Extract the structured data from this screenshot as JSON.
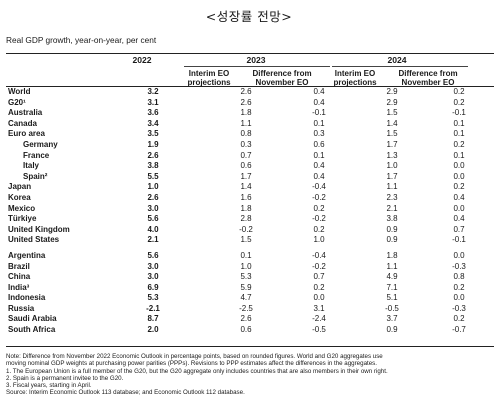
{
  "title": "<성장률 전망>",
  "subtitle": "Real GDP growth, year-on-year, per cent",
  "headers": {
    "y2022": "2022",
    "y2023": "2023",
    "y2024": "2024",
    "interim_1": "Interim EO",
    "interim_2": "projections",
    "diff_1": "Difference from",
    "diff_2": "November EO"
  },
  "rows_a": [
    {
      "name": "World",
      "v2022": "3.2",
      "i2023": "2.6",
      "d2023": "0.4",
      "i2024": "2.9",
      "d2024": "0.2",
      "indent": false
    },
    {
      "name": "G20¹",
      "v2022": "3.1",
      "i2023": "2.6",
      "d2023": "0.4",
      "i2024": "2.9",
      "d2024": "0.2",
      "indent": false
    },
    {
      "name": "Australia",
      "v2022": "3.6",
      "i2023": "1.8",
      "d2023": "-0.1",
      "i2024": "1.5",
      "d2024": "-0.1",
      "indent": false
    },
    {
      "name": "Canada",
      "v2022": "3.4",
      "i2023": "1.1",
      "d2023": "0.1",
      "i2024": "1.4",
      "d2024": "0.1",
      "indent": false
    },
    {
      "name": "Euro area",
      "v2022": "3.5",
      "i2023": "0.8",
      "d2023": "0.3",
      "i2024": "1.5",
      "d2024": "0.1",
      "indent": false
    },
    {
      "name": "Germany",
      "v2022": "1.9",
      "i2023": "0.3",
      "d2023": "0.6",
      "i2024": "1.7",
      "d2024": "0.2",
      "indent": true
    },
    {
      "name": "France",
      "v2022": "2.6",
      "i2023": "0.7",
      "d2023": "0.1",
      "i2024": "1.3",
      "d2024": "0.1",
      "indent": true
    },
    {
      "name": "Italy",
      "v2022": "3.8",
      "i2023": "0.6",
      "d2023": "0.4",
      "i2024": "1.0",
      "d2024": "0.0",
      "indent": true
    },
    {
      "name": "Spain²",
      "v2022": "5.5",
      "i2023": "1.7",
      "d2023": "0.4",
      "i2024": "1.7",
      "d2024": "0.0",
      "indent": true
    },
    {
      "name": "Japan",
      "v2022": "1.0",
      "i2023": "1.4",
      "d2023": "-0.4",
      "i2024": "1.1",
      "d2024": "0.2",
      "indent": false
    },
    {
      "name": "Korea",
      "v2022": "2.6",
      "i2023": "1.6",
      "d2023": "-0.2",
      "i2024": "2.3",
      "d2024": "0.4",
      "indent": false
    },
    {
      "name": "Mexico",
      "v2022": "3.0",
      "i2023": "1.8",
      "d2023": "0.2",
      "i2024": "2.1",
      "d2024": "0.0",
      "indent": false
    },
    {
      "name": "Türkiye",
      "v2022": "5.6",
      "i2023": "2.8",
      "d2023": "-0.2",
      "i2024": "3.8",
      "d2024": "0.4",
      "indent": false
    },
    {
      "name": "United Kingdom",
      "v2022": "4.0",
      "i2023": "-0.2",
      "d2023": "0.2",
      "i2024": "0.9",
      "d2024": "0.7",
      "indent": false
    },
    {
      "name": "United States",
      "v2022": "2.1",
      "i2023": "1.5",
      "d2023": "1.0",
      "i2024": "0.9",
      "d2024": "-0.1",
      "indent": false
    }
  ],
  "rows_b": [
    {
      "name": "Argentina",
      "v2022": "5.6",
      "i2023": "0.1",
      "d2023": "-0.4",
      "i2024": "1.8",
      "d2024": "0.0",
      "indent": false
    },
    {
      "name": "Brazil",
      "v2022": "3.0",
      "i2023": "1.0",
      "d2023": "-0.2",
      "i2024": "1.1",
      "d2024": "-0.3",
      "indent": false
    },
    {
      "name": "China",
      "v2022": "3.0",
      "i2023": "5.3",
      "d2023": "0.7",
      "i2024": "4.9",
      "d2024": "0.8",
      "indent": false
    },
    {
      "name": "India³",
      "v2022": "6.9",
      "i2023": "5.9",
      "d2023": "0.2",
      "i2024": "7.1",
      "d2024": "0.2",
      "indent": false
    },
    {
      "name": "Indonesia",
      "v2022": "5.3",
      "i2023": "4.7",
      "d2023": "0.0",
      "i2024": "5.1",
      "d2024": "0.0",
      "indent": false
    },
    {
      "name": "Russia",
      "v2022": "-2.1",
      "i2023": "-2.5",
      "d2023": "3.1",
      "i2024": "-0.5",
      "d2024": "-0.3",
      "indent": false
    },
    {
      "name": "Saudi Arabia",
      "v2022": "8.7",
      "i2023": "2.6",
      "d2023": "-2.4",
      "i2024": "3.7",
      "d2024": "0.2",
      "indent": false
    },
    {
      "name": "South Africa",
      "v2022": "2.0",
      "i2023": "0.6",
      "d2023": "-0.5",
      "i2024": "0.9",
      "d2024": "-0.7",
      "indent": false
    }
  ],
  "notes": [
    "Note: Difference from November 2022 Economic Outlook in percentage points, based on rounded figures. World and G20 aggregates use",
    "moving nominal GDP weights at purchasing power parities (PPPs). Revisions to PPP estimates affect the differences in the aggregates.",
    "1.   The European Union is a full member of the G20, but the G20 aggregate only includes countries that are also members in their own right.",
    "2.   Spain is a permanent invitee to the G20.",
    "3.   Fiscal years, starting in April.",
    "Source: Interim Economic Outlook 113 database; and Economic Outlook 112 database."
  ]
}
